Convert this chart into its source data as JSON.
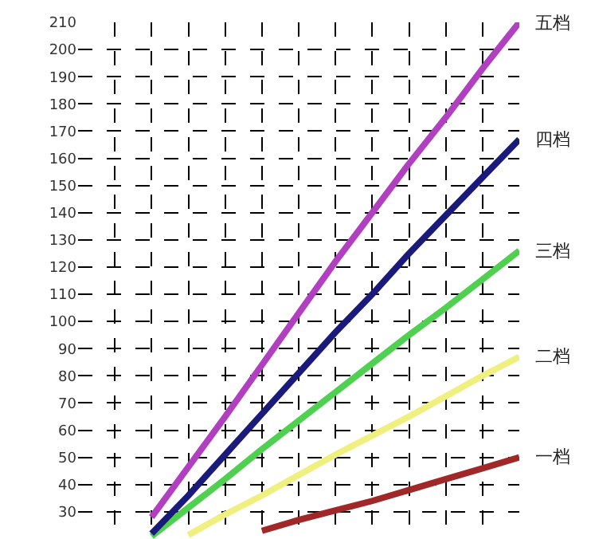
{
  "chart_data": {
    "type": "line",
    "categories": [
      null,
      null,
      null,
      null,
      null,
      null,
      null,
      null,
      null,
      null,
      null,
      null,
      null
    ],
    "series": [
      {
        "name": "一档",
        "color": "#a02828",
        "values": [
          null,
          null,
          null,
          null,
          null,
          23,
          27,
          30.5,
          34,
          38,
          42,
          46,
          50
        ]
      },
      {
        "name": "二档",
        "color": "#f0f080",
        "values": [
          null,
          null,
          null,
          21.5,
          29,
          36,
          43.5,
          51,
          58,
          65,
          72.5,
          80,
          87
        ]
      },
      {
        "name": "三档",
        "color": "#50d050",
        "values": [
          null,
          null,
          21,
          31.5,
          42,
          53,
          63.5,
          74,
          84.5,
          95,
          105,
          115.5,
          126
        ]
      },
      {
        "name": "四档",
        "color": "#1a1a7a",
        "values": [
          null,
          null,
          22,
          36,
          51,
          66,
          81,
          96,
          110,
          125,
          139,
          153,
          167
        ]
      },
      {
        "name": "五档",
        "color": "#b040c0",
        "values": [
          null,
          null,
          28,
          46.5,
          65,
          84,
          103,
          122,
          140,
          158,
          175,
          193,
          210
        ]
      }
    ],
    "ylim": [
      20,
      210
    ],
    "yticks": [
      30,
      40,
      50,
      60,
      70,
      80,
      90,
      100,
      110,
      120,
      130,
      140,
      150,
      160,
      170,
      180,
      190,
      200,
      210
    ],
    "grid": true,
    "legend": false,
    "tick_labels": "y",
    "marker": "none",
    "line_style": "solid"
  }
}
